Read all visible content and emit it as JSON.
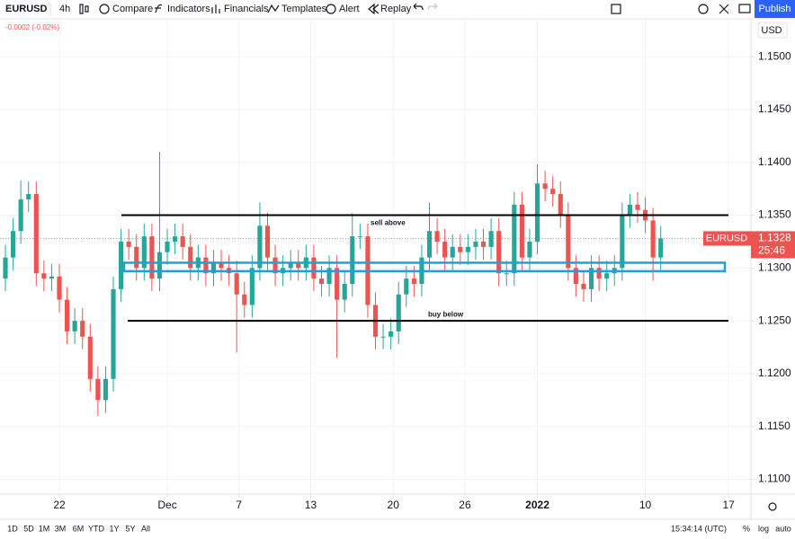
{
  "toolbar": {
    "symbol": "EURUSD",
    "interval": "4h",
    "buttons": [
      "Compare",
      "Indicators",
      "Financials",
      "Templates",
      "Alert",
      "Replay"
    ],
    "publish": "Publish"
  },
  "change": "-0.0002 (-0.02%)",
  "currency": "USD",
  "chart": {
    "type": "candlestick",
    "up_color": "#26a69a",
    "down_color": "#ef5350",
    "ohlc": [
      [
        1.129,
        1.1322,
        1.1278,
        1.131
      ],
      [
        1.131,
        1.1347,
        1.1298,
        1.1335
      ],
      [
        1.1335,
        1.1383,
        1.1323,
        1.1365
      ],
      [
        1.1365,
        1.1382,
        1.1353,
        1.137
      ],
      [
        1.137,
        1.1382,
        1.1283,
        1.1295
      ],
      [
        1.1295,
        1.1307,
        1.1278,
        1.129
      ],
      [
        1.129,
        1.1304,
        1.1278,
        1.1292
      ],
      [
        1.1292,
        1.1304,
        1.1258,
        1.127
      ],
      [
        1.127,
        1.1282,
        1.1228,
        1.124
      ],
      [
        1.124,
        1.1262,
        1.1228,
        1.125
      ],
      [
        1.125,
        1.1262,
        1.1223,
        1.1235
      ],
      [
        1.1235,
        1.1247,
        1.1183,
        1.1195
      ],
      [
        1.1195,
        1.1207,
        1.116,
        1.1175
      ],
      [
        1.1175,
        1.1207,
        1.1163,
        1.1195
      ],
      [
        1.1195,
        1.1292,
        1.1183,
        1.128
      ],
      [
        1.128,
        1.1337,
        1.1268,
        1.1325
      ],
      [
        1.1325,
        1.1337,
        1.1308,
        1.132
      ],
      [
        1.132,
        1.1332,
        1.1288,
        1.13
      ],
      [
        1.13,
        1.1342,
        1.1288,
        1.133
      ],
      [
        1.133,
        1.1342,
        1.1278,
        1.129
      ],
      [
        1.129,
        1.141,
        1.1278,
        1.1315
      ],
      [
        1.1315,
        1.1337,
        1.1303,
        1.1325
      ],
      [
        1.1325,
        1.1342,
        1.1313,
        1.133
      ],
      [
        1.133,
        1.1342,
        1.1308,
        1.132
      ],
      [
        1.132,
        1.1332,
        1.1288,
        1.13
      ],
      [
        1.13,
        1.1322,
        1.1288,
        1.131
      ],
      [
        1.131,
        1.1322,
        1.1283,
        1.1295
      ],
      [
        1.1295,
        1.1317,
        1.1283,
        1.1305
      ],
      [
        1.1305,
        1.1317,
        1.1288,
        1.13
      ],
      [
        1.13,
        1.1312,
        1.1283,
        1.1295
      ],
      [
        1.1295,
        1.1307,
        1.122,
        1.1275
      ],
      [
        1.1275,
        1.1287,
        1.1253,
        1.1265
      ],
      [
        1.1265,
        1.1312,
        1.1253,
        1.13
      ],
      [
        1.13,
        1.1362,
        1.1288,
        1.134
      ],
      [
        1.134,
        1.1352,
        1.1298,
        1.131
      ],
      [
        1.131,
        1.1322,
        1.1283,
        1.1295
      ],
      [
        1.1295,
        1.1312,
        1.1283,
        1.13
      ],
      [
        1.13,
        1.1317,
        1.1288,
        1.1305
      ],
      [
        1.1305,
        1.1317,
        1.1288,
        1.13
      ],
      [
        1.13,
        1.1322,
        1.1288,
        1.131
      ],
      [
        1.131,
        1.1322,
        1.1278,
        1.129
      ],
      [
        1.129,
        1.1302,
        1.1273,
        1.1285
      ],
      [
        1.1285,
        1.1312,
        1.1273,
        1.13
      ],
      [
        1.13,
        1.1312,
        1.1215,
        1.127
      ],
      [
        1.127,
        1.1297,
        1.1258,
        1.1285
      ],
      [
        1.1285,
        1.1352,
        1.1273,
        1.133
      ],
      [
        1.133,
        1.1342,
        1.1318,
        1.133
      ],
      [
        1.133,
        1.1342,
        1.1253,
        1.1265
      ],
      [
        1.1265,
        1.1277,
        1.1223,
        1.1235
      ],
      [
        1.1235,
        1.1247,
        1.1223,
        1.1235
      ],
      [
        1.1235,
        1.1252,
        1.1223,
        1.124
      ],
      [
        1.124,
        1.1287,
        1.1228,
        1.1275
      ],
      [
        1.1275,
        1.1302,
        1.1263,
        1.129
      ],
      [
        1.129,
        1.1302,
        1.1273,
        1.1285
      ],
      [
        1.1285,
        1.1322,
        1.1273,
        1.131
      ],
      [
        1.131,
        1.1362,
        1.1298,
        1.1335
      ],
      [
        1.1335,
        1.1347,
        1.1313,
        1.1325
      ],
      [
        1.1325,
        1.1337,
        1.1298,
        1.131
      ],
      [
        1.131,
        1.1332,
        1.1298,
        1.132
      ],
      [
        1.132,
        1.1332,
        1.1303,
        1.1315
      ],
      [
        1.1315,
        1.1332,
        1.1303,
        1.132
      ],
      [
        1.132,
        1.1337,
        1.1308,
        1.1325
      ],
      [
        1.1325,
        1.1337,
        1.1308,
        1.132
      ],
      [
        1.132,
        1.1347,
        1.1308,
        1.1335
      ],
      [
        1.1335,
        1.1347,
        1.1283,
        1.1295
      ],
      [
        1.1295,
        1.1307,
        1.1283,
        1.1295
      ],
      [
        1.1295,
        1.1372,
        1.1283,
        1.136
      ],
      [
        1.136,
        1.1372,
        1.1298,
        1.131
      ],
      [
        1.131,
        1.1337,
        1.1298,
        1.1325
      ],
      [
        1.1325,
        1.1398,
        1.1313,
        1.138
      ],
      [
        1.138,
        1.1392,
        1.1363,
        1.1375
      ],
      [
        1.1375,
        1.1387,
        1.1358,
        1.137
      ],
      [
        1.137,
        1.1382,
        1.1338,
        1.135
      ],
      [
        1.135,
        1.1362,
        1.1288,
        1.13
      ],
      [
        1.13,
        1.1312,
        1.1273,
        1.1285
      ],
      [
        1.1285,
        1.1297,
        1.1268,
        1.128
      ],
      [
        1.128,
        1.1312,
        1.1268,
        1.13
      ],
      [
        1.13,
        1.1312,
        1.1278,
        1.129
      ],
      [
        1.129,
        1.1307,
        1.1278,
        1.1295
      ],
      [
        1.1295,
        1.1312,
        1.1283,
        1.13
      ],
      [
        1.13,
        1.1362,
        1.1288,
        1.135
      ],
      [
        1.135,
        1.137,
        1.1338,
        1.136
      ],
      [
        1.136,
        1.1372,
        1.1343,
        1.1355
      ],
      [
        1.1355,
        1.1367,
        1.1333,
        1.1345
      ],
      [
        1.1345,
        1.1357,
        1.1288,
        1.131
      ],
      [
        1.131,
        1.134,
        1.1298,
        1.1328
      ]
    ],
    "xlim": [
      -0.7,
      96.7
    ],
    "xticks": [
      {
        "value": 7,
        "label": "22"
      },
      {
        "value": 21,
        "label": "Dec"
      },
      {
        "value": 30.3,
        "label": "7"
      },
      {
        "value": 39.6,
        "label": "13"
      },
      {
        "value": 50.3,
        "label": "20"
      },
      {
        "value": 59.6,
        "label": "26"
      },
      {
        "value": 69,
        "label": "2022"
      },
      {
        "value": 83,
        "label": "10"
      },
      {
        "value": 93.8,
        "label": "17"
      }
    ],
    "ylim": [
      1.1086,
      1.1535
    ],
    "yticks": [
      {
        "value": 1.11,
        "label": "1.1100"
      },
      {
        "value": 1.115,
        "label": "1.1150"
      },
      {
        "value": 1.12,
        "label": "1.1200"
      },
      {
        "value": 1.125,
        "label": "1.1250"
      },
      {
        "value": 1.13,
        "label": "1.1300"
      },
      {
        "value": 1.135,
        "label": "1.1350"
      },
      {
        "value": 1.14,
        "label": "1.1400"
      },
      {
        "value": 1.145,
        "label": "1.1450"
      },
      {
        "value": 1.15,
        "label": "1.1500"
      }
    ],
    "grid": true,
    "levels": [
      {
        "price": 1.135,
        "color": "#000000"
      },
      {
        "price": 1.125,
        "color": "#000000"
      }
    ],
    "zone": {
      "range": [
        1.1297,
        1.1305
      ],
      "color": "#1e9fe0"
    },
    "annotations": [
      "sell above",
      "buy below"
    ],
    "last": {
      "symbol": "EURUSD",
      "price": 1.1328,
      "countdown": "25:46",
      "color": "#ef5350"
    }
  },
  "ranges": [
    "1D",
    "5D",
    "1M",
    "3M",
    "6M",
    "YTD",
    "1Y",
    "5Y",
    "All"
  ],
  "time": "15:34:14 (UTC)",
  "scale_options": [
    "%",
    "log",
    "auto"
  ]
}
